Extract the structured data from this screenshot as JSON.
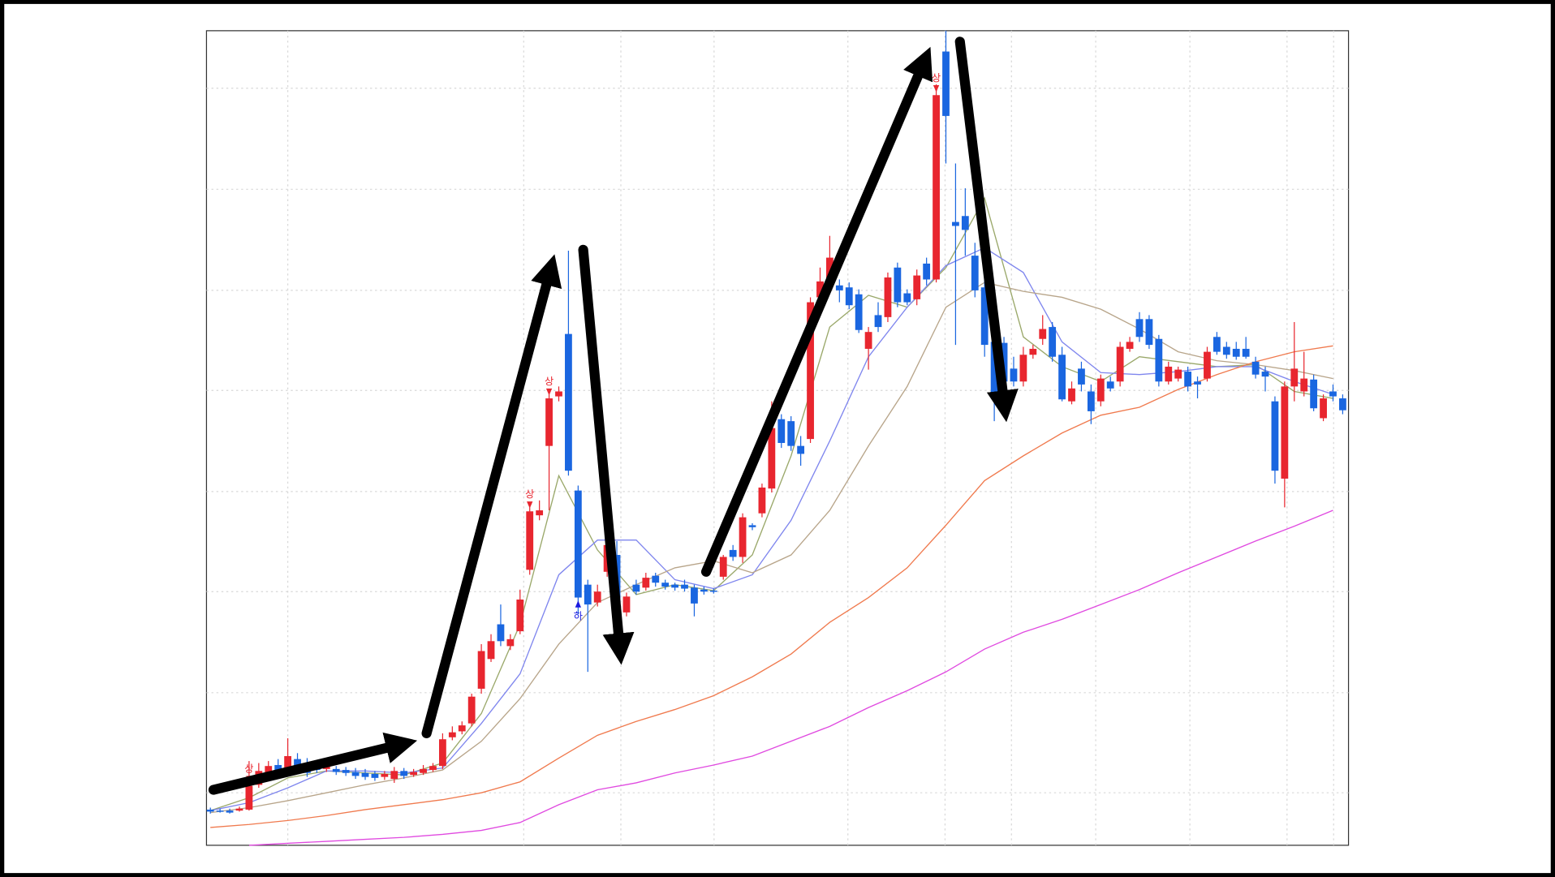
{
  "chart_data": {
    "type": "candlestick",
    "ylim": [
      0,
      822
    ],
    "yticks": [
      53,
      154,
      256,
      357,
      459,
      560,
      662,
      764
    ],
    "grid": true,
    "up_color": "#e8262f",
    "down_color": "#1a66e0",
    "open": [
      36,
      35,
      35,
      35,
      36,
      61,
      73,
      81,
      75,
      87,
      81,
      80,
      77,
      77,
      76,
      74,
      73,
      72,
      69,
      67,
      75,
      71,
      73,
      76,
      80,
      109,
      115,
      123,
      158,
      188,
      223,
      201,
      216,
      278,
      333,
      403,
      453,
      516,
      358,
      263,
      245,
      276,
      293,
      235,
      263,
      260,
      272,
      265,
      263,
      263,
      260,
      258,
      257,
      271,
      298,
      291,
      323,
      335,
      360,
      430,
      428,
      403,
      410,
      553,
      568,
      565,
      563,
      556,
      501,
      535,
      533,
      583,
      557,
      551,
      587,
      571,
      801,
      629,
      635,
      595,
      563,
      508,
      507,
      481,
      468,
      495,
      511,
      523,
      495,
      448,
      481,
      458,
      448,
      468,
      468,
      501,
      531,
      531,
      511,
      468,
      471,
      478,
      468,
      471,
      513,
      503,
      501,
      501,
      488,
      478,
      448,
      370,
      463,
      458,
      470,
      431,
      458,
      451
    ],
    "close": [
      34,
      34,
      33,
      37,
      60,
      75,
      80,
      73,
      90,
      80,
      73,
      76,
      81,
      74,
      73,
      70,
      69,
      68,
      72,
      75,
      70,
      74,
      77,
      80,
      107,
      114,
      121,
      150,
      196,
      206,
      206,
      208,
      248,
      337,
      338,
      451,
      458,
      378,
      250,
      243,
      256,
      303,
      235,
      251,
      256,
      270,
      265,
      261,
      260,
      259,
      244,
      256,
      256,
      291,
      291,
      331,
      321,
      361,
      421,
      406,
      403,
      395,
      548,
      569,
      593,
      560,
      545,
      520,
      518,
      523,
      573,
      548,
      548,
      575,
      571,
      757,
      736,
      625,
      621,
      560,
      505,
      455,
      468,
      468,
      495,
      501,
      521,
      493,
      450,
      461,
      465,
      438,
      471,
      461,
      503,
      508,
      513,
      505,
      468,
      483,
      480,
      463,
      465,
      498,
      498,
      495,
      493,
      493,
      475,
      473,
      378,
      463,
      481,
      471,
      441,
      451,
      453,
      439
    ],
    "high": [
      38,
      37,
      37,
      39,
      85,
      83,
      85,
      87,
      108,
      93,
      88,
      85,
      85,
      80,
      79,
      78,
      77,
      75,
      75,
      79,
      78,
      77,
      81,
      83,
      113,
      120,
      125,
      153,
      203,
      213,
      243,
      213,
      258,
      341,
      348,
      455,
      463,
      600,
      363,
      268,
      263,
      308,
      307,
      255,
      268,
      275,
      275,
      268,
      265,
      268,
      263,
      261,
      259,
      293,
      303,
      335,
      325,
      365,
      448,
      435,
      433,
      413,
      553,
      583,
      615,
      571,
      568,
      561,
      523,
      548,
      578,
      588,
      561,
      581,
      593,
      768,
      822,
      688,
      663,
      608,
      578,
      523,
      513,
      493,
      503,
      505,
      535,
      528,
      503,
      468,
      488,
      465,
      475,
      473,
      508,
      513,
      538,
      535,
      515,
      488,
      483,
      483,
      473,
      503,
      518,
      508,
      508,
      513,
      493,
      483,
      453,
      468,
      528,
      498,
      475,
      455,
      465,
      455
    ],
    "low": [
      32,
      33,
      32,
      34,
      35,
      58,
      67,
      69,
      71,
      75,
      69,
      73,
      74,
      71,
      70,
      67,
      66,
      65,
      66,
      63,
      67,
      69,
      71,
      74,
      77,
      106,
      112,
      120,
      153,
      185,
      201,
      197,
      213,
      273,
      328,
      338,
      448,
      373,
      233,
      175,
      241,
      271,
      228,
      231,
      253,
      257,
      261,
      258,
      257,
      256,
      231,
      253,
      254,
      268,
      287,
      285,
      318,
      331,
      356,
      401,
      398,
      383,
      406,
      548,
      563,
      548,
      541,
      517,
      480,
      518,
      528,
      543,
      545,
      545,
      565,
      568,
      688,
      505,
      595,
      553,
      493,
      428,
      463,
      463,
      463,
      491,
      505,
      488,
      448,
      445,
      458,
      425,
      443,
      458,
      463,
      498,
      508,
      501,
      463,
      465,
      468,
      458,
      451,
      468,
      495,
      491,
      490,
      491,
      471,
      458,
      365,
      341,
      448,
      453,
      438,
      428,
      448,
      435
    ],
    "series": [
      {
        "color": "#9aa86a",
        "x": [
          0,
          4,
          8,
          12,
          16,
          20,
          24,
          28,
          32,
          36,
          40,
          44,
          48,
          52,
          56,
          60,
          64,
          68,
          72,
          76,
          80,
          84,
          88,
          92,
          96,
          100,
          104,
          108,
          112,
          116
        ],
        "values": [
          35,
          48,
          68,
          75,
          73,
          71,
          83,
          133,
          223,
          373,
          298,
          253,
          263,
          257,
          293,
          393,
          523,
          555,
          543,
          583,
          653,
          513,
          483,
          468,
          493,
          488,
          483,
          485,
          458,
          451
        ]
      },
      {
        "color": "#7f86ee",
        "x": [
          0,
          4,
          8,
          12,
          16,
          20,
          24,
          28,
          32,
          36,
          40,
          44,
          48,
          52,
          56,
          60,
          64,
          68,
          72,
          76,
          80,
          84,
          88,
          92,
          96,
          100,
          104,
          108,
          112,
          116
        ],
        "values": [
          35,
          43,
          58,
          75,
          75,
          73,
          78,
          123,
          173,
          273,
          308,
          308,
          268,
          259,
          273,
          328,
          408,
          493,
          543,
          585,
          603,
          578,
          508,
          477,
          475,
          478,
          483,
          483,
          468,
          455
        ]
      },
      {
        "color": "#b8a58a",
        "x": [
          0,
          4,
          8,
          12,
          16,
          20,
          24,
          28,
          32,
          36,
          40,
          44,
          48,
          52,
          56,
          60,
          64,
          68,
          72,
          76,
          80,
          84,
          88,
          92,
          96,
          100,
          104,
          108,
          112,
          116
        ],
        "values": [
          33,
          38,
          45,
          53,
          61,
          68,
          76,
          105,
          148,
          203,
          245,
          263,
          280,
          287,
          275,
          293,
          338,
          403,
          463,
          543,
          568,
          559,
          553,
          541,
          521,
          498,
          489,
          485,
          479,
          471
        ]
      },
      {
        "color": "#f07a4e",
        "x": [
          0,
          4,
          8,
          12,
          16,
          20,
          24,
          28,
          32,
          36,
          40,
          44,
          48,
          52,
          56,
          60,
          64,
          68,
          72,
          76,
          80,
          84,
          88,
          92,
          96,
          100,
          104,
          108,
          112,
          116
        ],
        "values": [
          18,
          21,
          25,
          30,
          36,
          41,
          46,
          53,
          64,
          88,
          111,
          125,
          137,
          151,
          170,
          193,
          225,
          250,
          280,
          323,
          368,
          393,
          416,
          434,
          442,
          460,
          475,
          488,
          498,
          504
        ]
      },
      {
        "color": "#e04ae0",
        "x": [
          4,
          8,
          12,
          16,
          20,
          24,
          28,
          32,
          36,
          40,
          44,
          48,
          52,
          56,
          60,
          64,
          68,
          72,
          76,
          80,
          84,
          88,
          92,
          96,
          100,
          104,
          108,
          112,
          116
        ],
        "values": [
          0,
          2,
          4,
          6,
          8,
          11,
          15,
          23,
          41,
          56,
          63,
          73,
          81,
          90,
          105,
          120,
          139,
          156,
          175,
          198,
          215,
          228,
          243,
          258,
          275,
          291,
          307,
          322,
          338
        ]
      }
    ],
    "annotations": [
      {
        "index": 4,
        "text": "상",
        "position": "above",
        "color": "#e8262f"
      },
      {
        "index": 33,
        "text": "상",
        "position": "above",
        "color": "#e8262f"
      },
      {
        "index": 35,
        "text": "상",
        "position": "above",
        "color": "#e8262f"
      },
      {
        "index": 75,
        "text": "상",
        "position": "above",
        "color": "#e8262f"
      },
      {
        "index": 38,
        "text": "하",
        "position": "below",
        "color": "#1a1ae0"
      }
    ]
  }
}
